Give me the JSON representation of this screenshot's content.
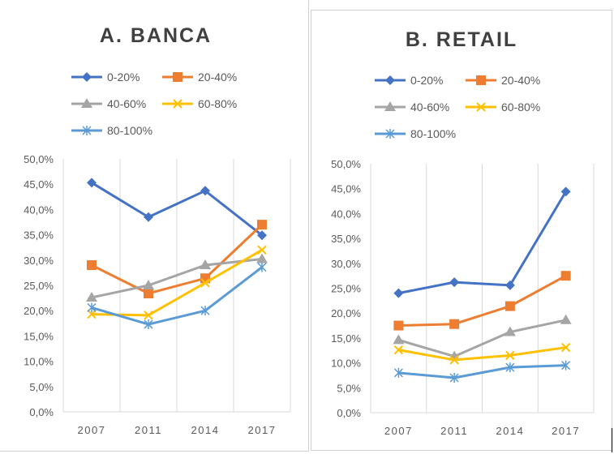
{
  "charts": [
    {
      "id": "a",
      "type": "line",
      "title": "A. BANCA",
      "categories": [
        "2007",
        "2011",
        "2014",
        "2017"
      ],
      "ylim": [
        0,
        50
      ],
      "y_ticks": [
        "0,0%",
        "5,0%",
        "10,0%",
        "15,0%",
        "20,0%",
        "25,0%",
        "30,0%",
        "35,0%",
        "40,0%",
        "45,0%",
        "50,0%"
      ],
      "grid": "vertical",
      "legend_position": "top",
      "series": [
        {
          "name": "0-20%",
          "color": "#4472C4",
          "marker": "diamond",
          "values": [
            45.3,
            38.5,
            43.7,
            34.9
          ]
        },
        {
          "name": "20-40%",
          "color": "#ED7D31",
          "marker": "square",
          "values": [
            29.0,
            23.4,
            26.4,
            37.0
          ]
        },
        {
          "name": "40-60%",
          "color": "#A5A5A5",
          "marker": "triangle",
          "values": [
            22.6,
            25.0,
            29.0,
            30.2
          ]
        },
        {
          "name": "60-80%",
          "color": "#FFC000",
          "marker": "x",
          "values": [
            19.3,
            19.1,
            25.5,
            32.0
          ]
        },
        {
          "name": "80-100%",
          "color": "#5B9BD5",
          "marker": "asterisk",
          "values": [
            20.6,
            17.3,
            20.0,
            28.6
          ]
        }
      ]
    },
    {
      "id": "b",
      "type": "line",
      "title": "B. RETAIL",
      "categories": [
        "2007",
        "2011",
        "2014",
        "2017"
      ],
      "ylim": [
        0,
        50
      ],
      "y_ticks": [
        "0,0%",
        "5,0%",
        "10,0%",
        "15,0%",
        "20,0%",
        "25,0%",
        "30,0%",
        "35,0%",
        "40,0%",
        "45,0%",
        "50,0%"
      ],
      "grid": "vertical",
      "legend_position": "top",
      "series": [
        {
          "name": "0-20%",
          "color": "#4472C4",
          "marker": "diamond",
          "values": [
            24.0,
            26.2,
            25.6,
            44.4
          ]
        },
        {
          "name": "20-40%",
          "color": "#ED7D31",
          "marker": "square",
          "values": [
            17.5,
            17.8,
            21.4,
            27.5
          ]
        },
        {
          "name": "40-60%",
          "color": "#A5A5A5",
          "marker": "triangle",
          "values": [
            14.6,
            11.3,
            16.2,
            18.6
          ]
        },
        {
          "name": "60-80%",
          "color": "#FFC000",
          "marker": "x",
          "values": [
            12.6,
            10.6,
            11.5,
            13.1
          ]
        },
        {
          "name": "80-100%",
          "color": "#5B9BD5",
          "marker": "asterisk",
          "values": [
            8.0,
            7.0,
            9.1,
            9.5
          ]
        }
      ]
    }
  ]
}
